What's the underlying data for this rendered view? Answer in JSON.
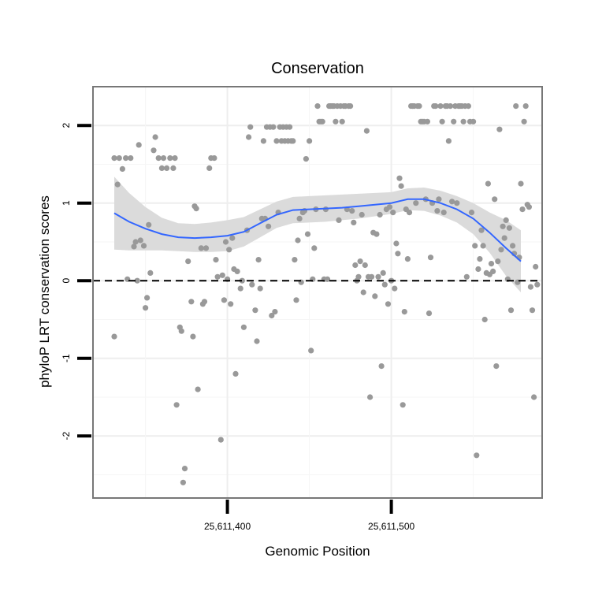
{
  "chart_data": {
    "type": "scatter",
    "title": "Conservation",
    "xlabel": "Genomic Position",
    "ylabel": "phyloP LRT conservation scores",
    "xlim": [
      25611318,
      25611592
    ],
    "ylim": [
      -2.8,
      2.5
    ],
    "x_ticks": [
      25611400,
      25611500
    ],
    "x_tick_labels": [
      "25,611,400",
      "25,611,500"
    ],
    "y_ticks": [
      -2,
      -1,
      0,
      1,
      2
    ],
    "y_tick_labels": [
      "-2",
      "-1",
      "0",
      "1",
      "2"
    ],
    "grid": true,
    "reference_line": {
      "y": 0,
      "style": "dashed"
    },
    "colors": {
      "points": "#999999",
      "smooth": "#3366ff",
      "ribbon": "#d9d9d9",
      "frame": "#777777"
    },
    "series": [
      {
        "kind": "points",
        "points": [
          [
            25611331,
            -0.72
          ],
          [
            25611331,
            1.58
          ],
          [
            25611333,
            1.24
          ],
          [
            25611334,
            1.58
          ],
          [
            25611336,
            1.44
          ],
          [
            25611338,
            1.58
          ],
          [
            25611339,
            0.02
          ],
          [
            25611341,
            1.58
          ],
          [
            25611343,
            0.44
          ],
          [
            25611344,
            0.5
          ],
          [
            25611345,
            0.0
          ],
          [
            25611346,
            1.75
          ],
          [
            25611347,
            0.52
          ],
          [
            25611349,
            0.45
          ],
          [
            25611350,
            -0.35
          ],
          [
            25611351,
            -0.22
          ],
          [
            25611352,
            0.72
          ],
          [
            25611353,
            0.1
          ],
          [
            25611355,
            1.68
          ],
          [
            25611356,
            1.85
          ],
          [
            25611358,
            1.58
          ],
          [
            25611360,
            1.45
          ],
          [
            25611361,
            1.58
          ],
          [
            25611363,
            1.45
          ],
          [
            25611365,
            1.58
          ],
          [
            25611367,
            1.45
          ],
          [
            25611368,
            1.58
          ],
          [
            25611369,
            -1.6
          ],
          [
            25611371,
            -0.6
          ],
          [
            25611372,
            -0.65
          ],
          [
            25611373,
            -2.6
          ],
          [
            25611374,
            -2.42
          ],
          [
            25611376,
            0.25
          ],
          [
            25611378,
            -0.27
          ],
          [
            25611379,
            -0.72
          ],
          [
            25611380,
            0.96
          ],
          [
            25611381,
            0.93
          ],
          [
            25611382,
            -1.4
          ],
          [
            25611384,
            0.42
          ],
          [
            25611385,
            -0.3
          ],
          [
            25611386,
            -0.27
          ],
          [
            25611387,
            0.42
          ],
          [
            25611389,
            1.45
          ],
          [
            25611390,
            1.58
          ],
          [
            25611392,
            1.58
          ],
          [
            25611393,
            0.27
          ],
          [
            25611394,
            0.05
          ],
          [
            25611396,
            -2.05
          ],
          [
            25611397,
            0.07
          ],
          [
            25611398,
            -0.25
          ],
          [
            25611399,
            0.5
          ],
          [
            25611400,
            0.02
          ],
          [
            25611401,
            0.4
          ],
          [
            25611402,
            -0.3
          ],
          [
            25611403,
            0.55
          ],
          [
            25611404,
            0.15
          ],
          [
            25611405,
            -1.2
          ],
          [
            25611406,
            0.12
          ],
          [
            25611408,
            -0.1
          ],
          [
            25611409,
            0.0
          ],
          [
            25611410,
            -0.6
          ],
          [
            25611412,
            0.65
          ],
          [
            25611413,
            1.85
          ],
          [
            25611414,
            1.98
          ],
          [
            25611415,
            -0.05
          ],
          [
            25611417,
            -0.38
          ],
          [
            25611418,
            -0.78
          ],
          [
            25611419,
            0.27
          ],
          [
            25611420,
            -0.1
          ],
          [
            25611421,
            0.8
          ],
          [
            25611422,
            1.8
          ],
          [
            25611423,
            0.8
          ],
          [
            25611424,
            1.98
          ],
          [
            25611425,
            0.7
          ],
          [
            25611426,
            1.98
          ],
          [
            25611427,
            -0.45
          ],
          [
            25611428,
            1.98
          ],
          [
            25611429,
            -0.4
          ],
          [
            25611430,
            1.8
          ],
          [
            25611431,
            0.88
          ],
          [
            25611432,
            1.98
          ],
          [
            25611433,
            1.8
          ],
          [
            25611434,
            1.98
          ],
          [
            25611435,
            1.8
          ],
          [
            25611436,
            1.98
          ],
          [
            25611437,
            1.8
          ],
          [
            25611438,
            1.98
          ],
          [
            25611439,
            1.8
          ],
          [
            25611440,
            1.8
          ],
          [
            25611441,
            0.27
          ],
          [
            25611442,
            -0.25
          ],
          [
            25611443,
            0.52
          ],
          [
            25611444,
            0.8
          ],
          [
            25611445,
            -0.02
          ],
          [
            25611446,
            0.88
          ],
          [
            25611447,
            0.9
          ],
          [
            25611448,
            1.57
          ],
          [
            25611449,
            0.6
          ],
          [
            25611450,
            1.8
          ],
          [
            25611451,
            -0.9
          ],
          [
            25611452,
            0.02
          ],
          [
            25611453,
            0.42
          ],
          [
            25611454,
            0.92
          ],
          [
            25611455,
            2.25
          ],
          [
            25611456,
            2.05
          ],
          [
            25611457,
            2.05
          ],
          [
            25611458,
            2.05
          ],
          [
            25611459,
            0.02
          ],
          [
            25611460,
            0.92
          ],
          [
            25611461,
            0.02
          ],
          [
            25611462,
            2.25
          ],
          [
            25611463,
            2.25
          ],
          [
            25611464,
            2.25
          ],
          [
            25611465,
            2.25
          ],
          [
            25611466,
            2.05
          ],
          [
            25611467,
            2.25
          ],
          [
            25611468,
            0.78
          ],
          [
            25611469,
            2.25
          ],
          [
            25611470,
            2.05
          ],
          [
            25611471,
            2.25
          ],
          [
            25611472,
            2.25
          ],
          [
            25611473,
            0.92
          ],
          [
            25611474,
            2.25
          ],
          [
            25611475,
            2.25
          ],
          [
            25611476,
            0.9
          ],
          [
            25611477,
            0.75
          ],
          [
            25611478,
            0.2
          ],
          [
            25611479,
            0.0
          ],
          [
            25611480,
            0.05
          ],
          [
            25611481,
            0.25
          ],
          [
            25611482,
            0.85
          ],
          [
            25611483,
            -0.15
          ],
          [
            25611484,
            0.2
          ],
          [
            25611485,
            1.93
          ],
          [
            25611486,
            0.05
          ],
          [
            25611487,
            -1.5
          ],
          [
            25611488,
            0.05
          ],
          [
            25611489,
            0.62
          ],
          [
            25611490,
            -0.2
          ],
          [
            25611491,
            0.6
          ],
          [
            25611492,
            0.05
          ],
          [
            25611493,
            0.85
          ],
          [
            25611494,
            -1.1
          ],
          [
            25611495,
            0.1
          ],
          [
            25611496,
            -0.05
          ],
          [
            25611497,
            0.92
          ],
          [
            25611498,
            -0.3
          ],
          [
            25611499,
            0.95
          ],
          [
            25611500,
            0.0
          ],
          [
            25611501,
            0.88
          ],
          [
            25611502,
            -0.1
          ],
          [
            25611503,
            0.48
          ],
          [
            25611504,
            0.35
          ],
          [
            25611505,
            1.32
          ],
          [
            25611506,
            1.22
          ],
          [
            25611507,
            -1.6
          ],
          [
            25611508,
            -0.4
          ],
          [
            25611509,
            0.92
          ],
          [
            25611510,
            0.28
          ],
          [
            25611511,
            0.88
          ],
          [
            25611512,
            2.25
          ],
          [
            25611513,
            2.25
          ],
          [
            25611514,
            2.25
          ],
          [
            25611515,
            1.0
          ],
          [
            25611516,
            2.25
          ],
          [
            25611517,
            2.25
          ],
          [
            25611518,
            2.05
          ],
          [
            25611519,
            2.05
          ],
          [
            25611520,
            2.05
          ],
          [
            25611521,
            1.05
          ],
          [
            25611522,
            2.05
          ],
          [
            25611523,
            -0.42
          ],
          [
            25611524,
            0.3
          ],
          [
            25611525,
            1.0
          ],
          [
            25611526,
            2.25
          ],
          [
            25611527,
            2.25
          ],
          [
            25611528,
            0.9
          ],
          [
            25611529,
            1.05
          ],
          [
            25611530,
            2.25
          ],
          [
            25611531,
            2.05
          ],
          [
            25611532,
            0.88
          ],
          [
            25611533,
            2.25
          ],
          [
            25611534,
            2.25
          ],
          [
            25611535,
            1.8
          ],
          [
            25611536,
            2.25
          ],
          [
            25611537,
            1.02
          ],
          [
            25611538,
            2.05
          ],
          [
            25611539,
            2.25
          ],
          [
            25611540,
            1.0
          ],
          [
            25611541,
            2.25
          ],
          [
            25611542,
            2.25
          ],
          [
            25611543,
            2.25
          ],
          [
            25611544,
            2.05
          ],
          [
            25611545,
            2.25
          ],
          [
            25611546,
            0.05
          ],
          [
            25611547,
            2.25
          ],
          [
            25611548,
            2.05
          ],
          [
            25611549,
            0.88
          ],
          [
            25611550,
            2.05
          ],
          [
            25611551,
            0.45
          ],
          [
            25611552,
            -2.25
          ],
          [
            25611553,
            0.15
          ],
          [
            25611554,
            0.28
          ],
          [
            25611555,
            0.65
          ],
          [
            25611556,
            0.45
          ],
          [
            25611557,
            -0.5
          ],
          [
            25611558,
            0.1
          ],
          [
            25611559,
            1.25
          ],
          [
            25611560,
            0.08
          ],
          [
            25611561,
            0.22
          ],
          [
            25611562,
            0.12
          ],
          [
            25611563,
            1.05
          ],
          [
            25611564,
            -1.1
          ],
          [
            25611565,
            0.25
          ],
          [
            25611566,
            1.95
          ],
          [
            25611567,
            0.4
          ],
          [
            25611568,
            0.7
          ],
          [
            25611569,
            0.55
          ],
          [
            25611570,
            0.78
          ],
          [
            25611571,
            0.02
          ],
          [
            25611572,
            0.68
          ],
          [
            25611573,
            -0.38
          ],
          [
            25611574,
            0.45
          ],
          [
            25611575,
            0.35
          ],
          [
            25611576,
            2.25
          ],
          [
            25611577,
            -0.02
          ],
          [
            25611578,
            0.3
          ],
          [
            25611579,
            1.25
          ],
          [
            25611580,
            0.92
          ],
          [
            25611581,
            2.05
          ],
          [
            25611582,
            2.25
          ],
          [
            25611583,
            0.98
          ],
          [
            25611584,
            0.95
          ],
          [
            25611585,
            -0.08
          ],
          [
            25611586,
            -0.38
          ],
          [
            25611587,
            -1.5
          ],
          [
            25611588,
            0.18
          ],
          [
            25611589,
            -0.05
          ]
        ]
      },
      {
        "kind": "smooth",
        "x": [
          25611331,
          25611340,
          25611350,
          25611360,
          25611370,
          25611380,
          25611390,
          25611400,
          25611410,
          25611420,
          25611430,
          25611440,
          25611450,
          25611460,
          25611470,
          25611480,
          25611490,
          25611500,
          25611510,
          25611520,
          25611530,
          25611540,
          25611550,
          25611560,
          25611570,
          25611579
        ],
        "y": [
          0.87,
          0.76,
          0.67,
          0.6,
          0.56,
          0.55,
          0.56,
          0.58,
          0.63,
          0.74,
          0.85,
          0.91,
          0.92,
          0.93,
          0.94,
          0.96,
          0.98,
          1.0,
          1.05,
          1.05,
          1.0,
          0.92,
          0.8,
          0.62,
          0.42,
          0.25
        ],
        "lower": [
          0.4,
          0.39,
          0.39,
          0.39,
          0.38,
          0.37,
          0.37,
          0.38,
          0.44,
          0.56,
          0.68,
          0.74,
          0.75,
          0.76,
          0.78,
          0.8,
          0.83,
          0.86,
          0.91,
          0.9,
          0.84,
          0.75,
          0.6,
          0.36,
          0.06,
          -0.15
        ],
        "upper": [
          1.34,
          1.13,
          0.95,
          0.81,
          0.74,
          0.73,
          0.75,
          0.78,
          0.82,
          0.92,
          1.02,
          1.08,
          1.09,
          1.1,
          1.11,
          1.12,
          1.13,
          1.14,
          1.19,
          1.2,
          1.16,
          1.09,
          1.0,
          0.88,
          0.78,
          0.65
        ]
      }
    ]
  }
}
